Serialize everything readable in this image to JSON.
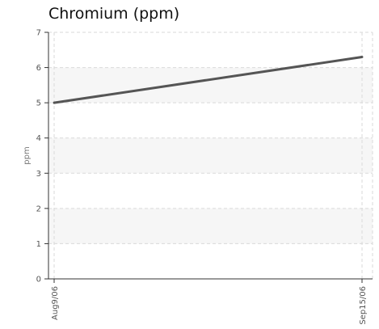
{
  "chart_data": {
    "type": "line",
    "title": "Chromium (ppm)",
    "xlabel": "",
    "ylabel": "ppm",
    "categories": [
      "Aug9/06",
      "Sep15/06"
    ],
    "series": [
      {
        "values": [
          5.0,
          6.3
        ]
      }
    ],
    "ylim": [
      0,
      7
    ],
    "yticks": [
      "0",
      "1",
      "2",
      "3",
      "4",
      "5",
      "6",
      "7"
    ],
    "grid": true,
    "banded_background": true,
    "legend": "none"
  },
  "colors": {
    "line": "#555555",
    "axis": "#333333",
    "grid": "#d9d9d9",
    "band": "#f6f6f6"
  }
}
